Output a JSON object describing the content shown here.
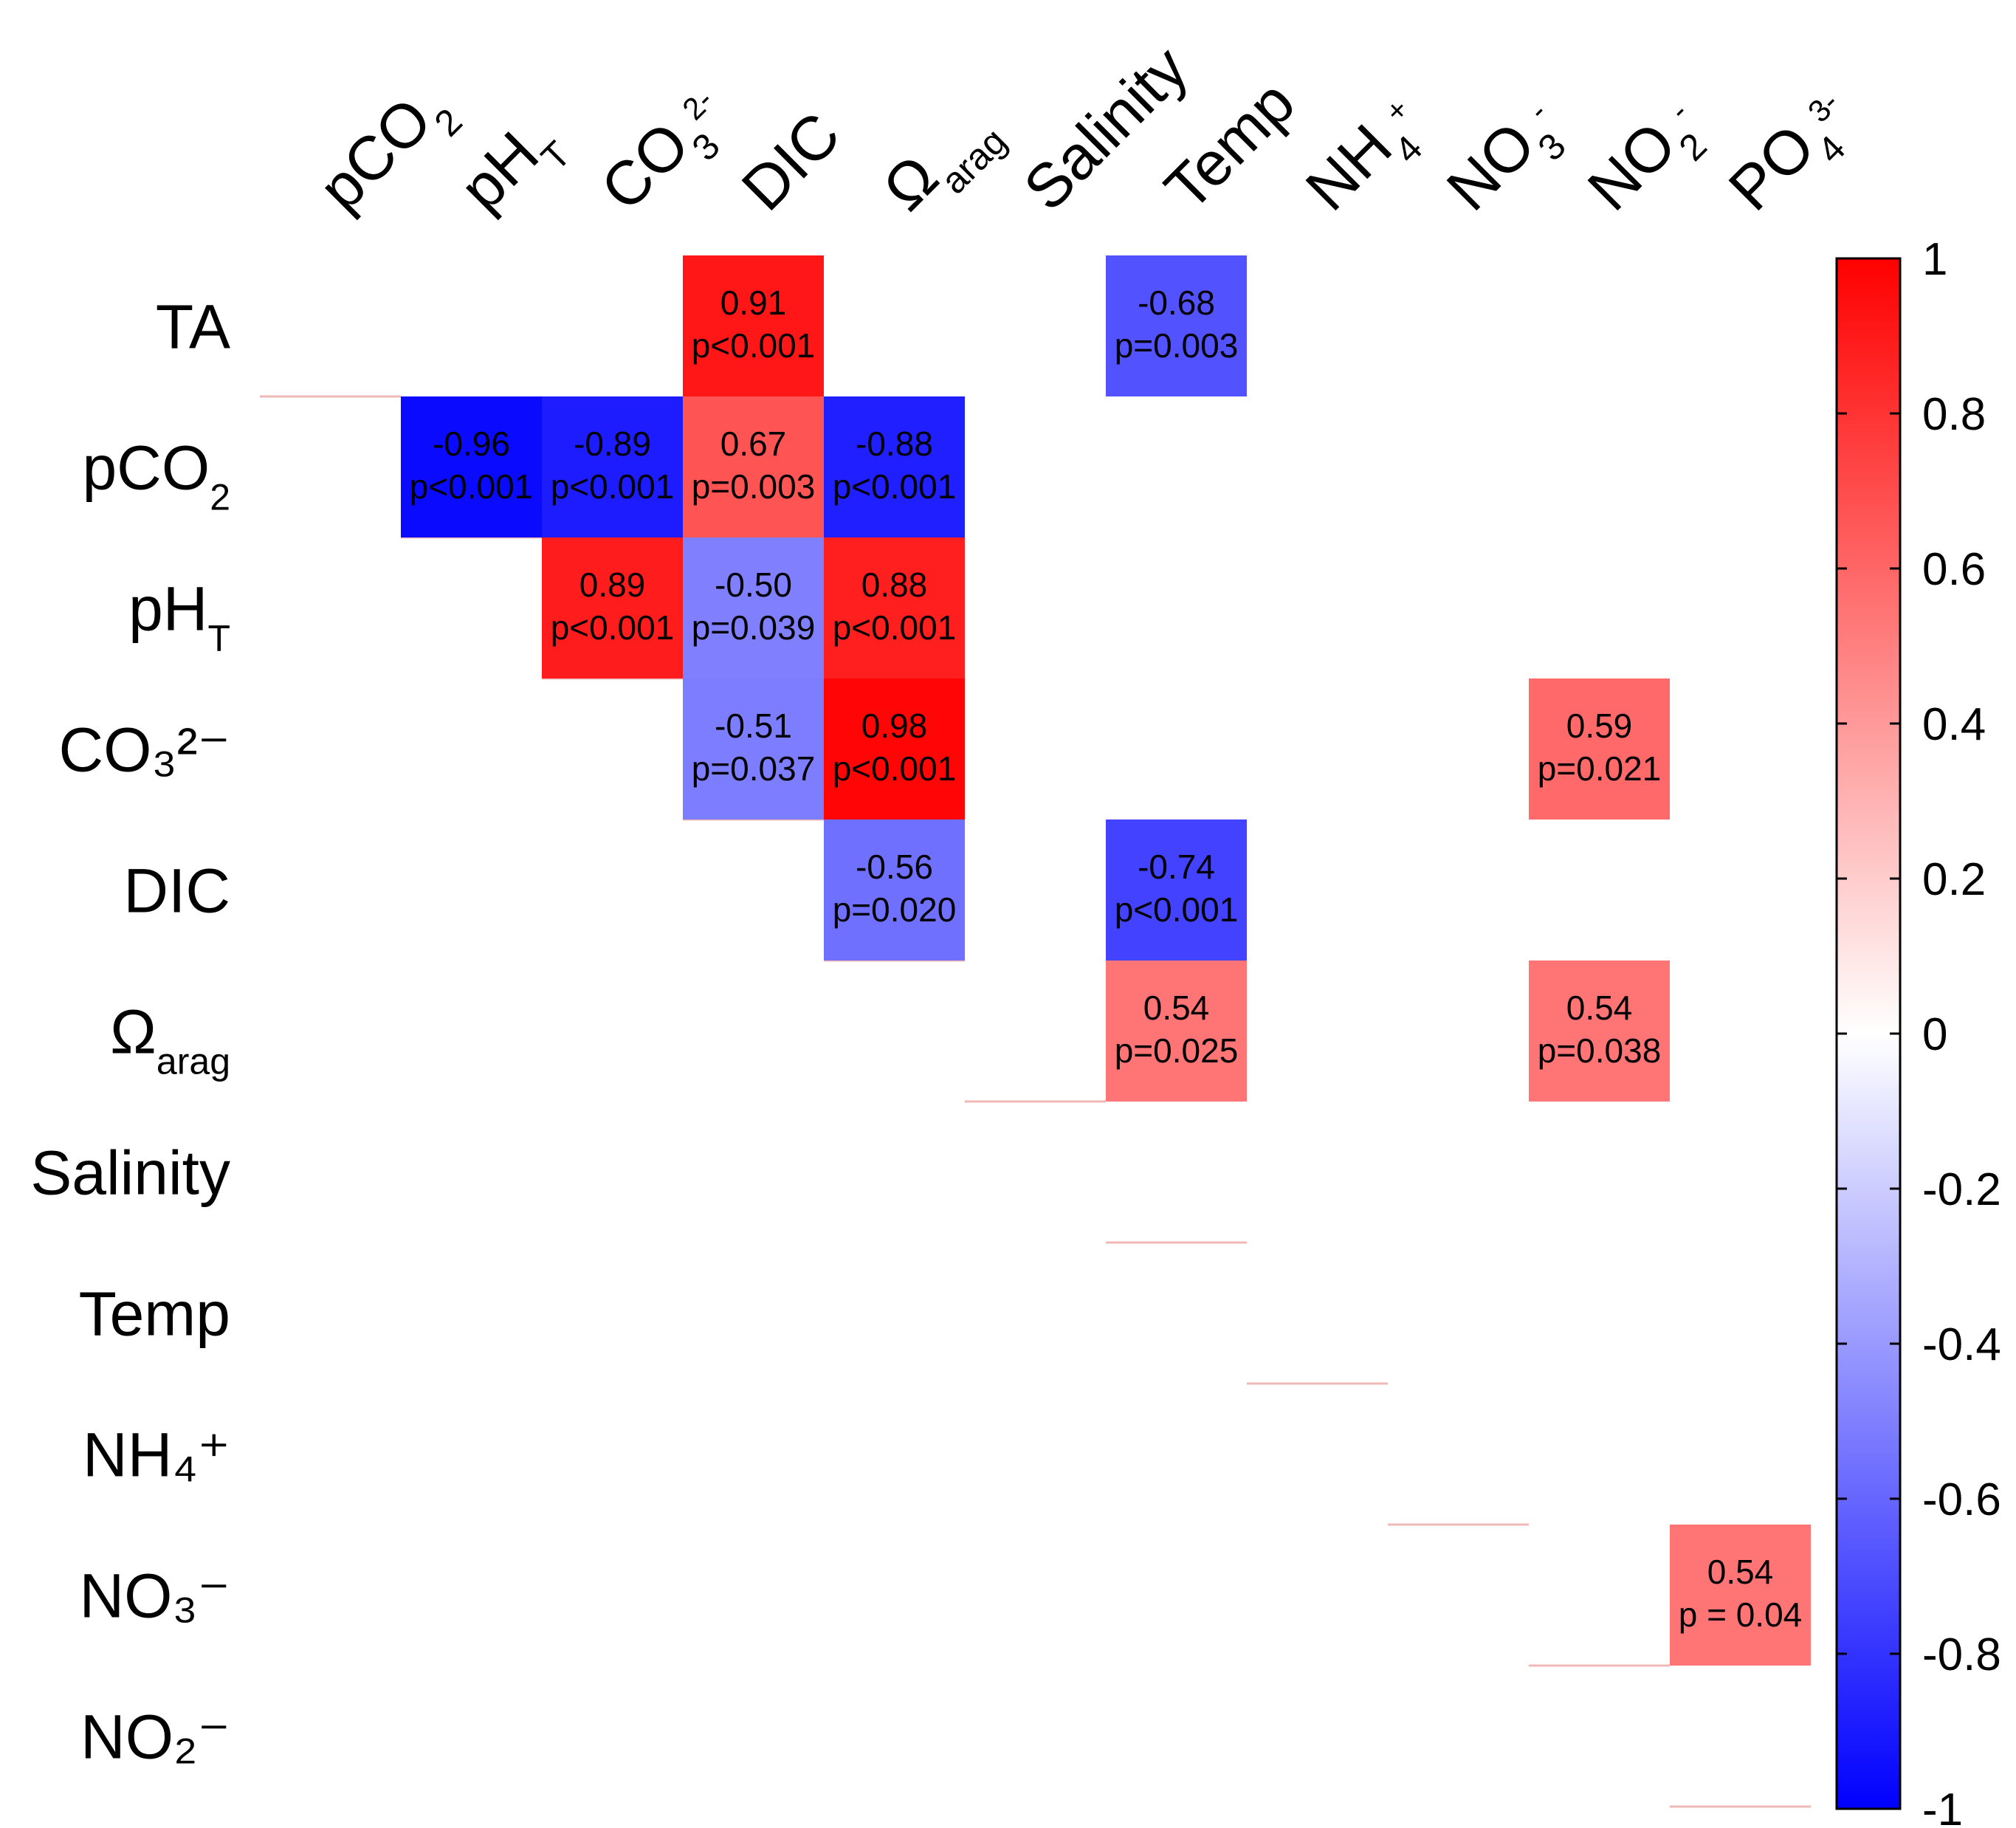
{
  "chart_data": {
    "type": "heatmap",
    "title": "",
    "columns": [
      {
        "base": "pCO",
        "sub": "2",
        "sup": ""
      },
      {
        "base": "pH",
        "sub": "T",
        "sup": ""
      },
      {
        "base": "CO",
        "sub": "3",
        "sup": "2-"
      },
      {
        "base": "DIC",
        "sub": "",
        "sup": ""
      },
      {
        "base": "Ω",
        "sub": "arag",
        "sup": ""
      },
      {
        "base": "Salinity",
        "sub": "",
        "sup": ""
      },
      {
        "base": "Temp",
        "sub": "",
        "sup": ""
      },
      {
        "base": "NH",
        "sub": "4",
        "sup": "+"
      },
      {
        "base": "NO",
        "sub": "3",
        "sup": "-"
      },
      {
        "base": "NO",
        "sub": "2",
        "sup": "-"
      },
      {
        "base": "PO",
        "sub": "4",
        "sup": "3-"
      }
    ],
    "rows": [
      {
        "base": "TA",
        "sub": "",
        "sup": ""
      },
      {
        "base": "pCO",
        "sub": "2",
        "sup": ""
      },
      {
        "base": "pH",
        "sub": "T",
        "sup": ""
      },
      {
        "base": "CO₃²⁻",
        "sub": "",
        "sup": ""
      },
      {
        "base": "DIC",
        "sub": "",
        "sup": ""
      },
      {
        "base": "Ω",
        "sub": "arag",
        "sup": ""
      },
      {
        "base": "Salinity",
        "sub": "",
        "sup": ""
      },
      {
        "base": "Temp",
        "sub": "",
        "sup": ""
      },
      {
        "base": "NH₄⁺",
        "sub": "",
        "sup": ""
      },
      {
        "base": "NO₃⁻",
        "sub": "",
        "sup": ""
      },
      {
        "base": "NO₂⁻",
        "sub": "",
        "sup": ""
      }
    ],
    "cells": [
      {
        "row": 0,
        "col": 3,
        "value": 0.91,
        "r_label": "0.91",
        "p_label": "p<0.001"
      },
      {
        "row": 0,
        "col": 6,
        "value": -0.68,
        "r_label": "-0.68",
        "p_label": "p=0.003"
      },
      {
        "row": 1,
        "col": 1,
        "value": -0.96,
        "r_label": "-0.96",
        "p_label": "p<0.001"
      },
      {
        "row": 1,
        "col": 2,
        "value": -0.89,
        "r_label": "-0.89",
        "p_label": "p<0.001"
      },
      {
        "row": 1,
        "col": 3,
        "value": 0.67,
        "r_label": "0.67",
        "p_label": "p=0.003"
      },
      {
        "row": 1,
        "col": 4,
        "value": -0.88,
        "r_label": "-0.88",
        "p_label": "p<0.001"
      },
      {
        "row": 2,
        "col": 2,
        "value": 0.89,
        "r_label": "0.89",
        "p_label": "p<0.001"
      },
      {
        "row": 2,
        "col": 3,
        "value": -0.5,
        "r_label": "-0.50",
        "p_label": "p=0.039"
      },
      {
        "row": 2,
        "col": 4,
        "value": 0.88,
        "r_label": "0.88",
        "p_label": "p<0.001"
      },
      {
        "row": 3,
        "col": 3,
        "value": -0.51,
        "r_label": "-0.51",
        "p_label": "p=0.037"
      },
      {
        "row": 3,
        "col": 4,
        "value": 0.98,
        "r_label": "0.98",
        "p_label": "p<0.001"
      },
      {
        "row": 3,
        "col": 9,
        "value": 0.59,
        "r_label": "0.59",
        "p_label": "p=0.021"
      },
      {
        "row": 4,
        "col": 4,
        "value": -0.56,
        "r_label": "-0.56",
        "p_label": "p=0.020"
      },
      {
        "row": 4,
        "col": 6,
        "value": -0.74,
        "r_label": "-0.74",
        "p_label": "p<0.001"
      },
      {
        "row": 5,
        "col": 6,
        "value": 0.54,
        "r_label": "0.54",
        "p_label": "p=0.025"
      },
      {
        "row": 5,
        "col": 9,
        "value": 0.54,
        "r_label": "0.54",
        "p_label": "p=0.038"
      },
      {
        "row": 9,
        "col": 10,
        "value": 0.54,
        "r_label": "0.54",
        "p_label": "p = 0.04"
      }
    ],
    "colorbar": {
      "range": [
        -1,
        1
      ],
      "ticks": [
        1,
        0.8,
        0.6,
        0.4,
        0.2,
        0,
        -0.2,
        -0.4,
        -0.6,
        -0.8,
        -1
      ],
      "tick_labels": [
        "1",
        "0.8",
        "0.6",
        "0.4",
        "0.2",
        "0",
        "-0.2",
        "-0.4",
        "-0.6",
        "-0.8",
        "-1"
      ],
      "colors": {
        "negative": "#0000ff",
        "zero": "#ffffff",
        "positive": "#ff0000"
      }
    }
  }
}
